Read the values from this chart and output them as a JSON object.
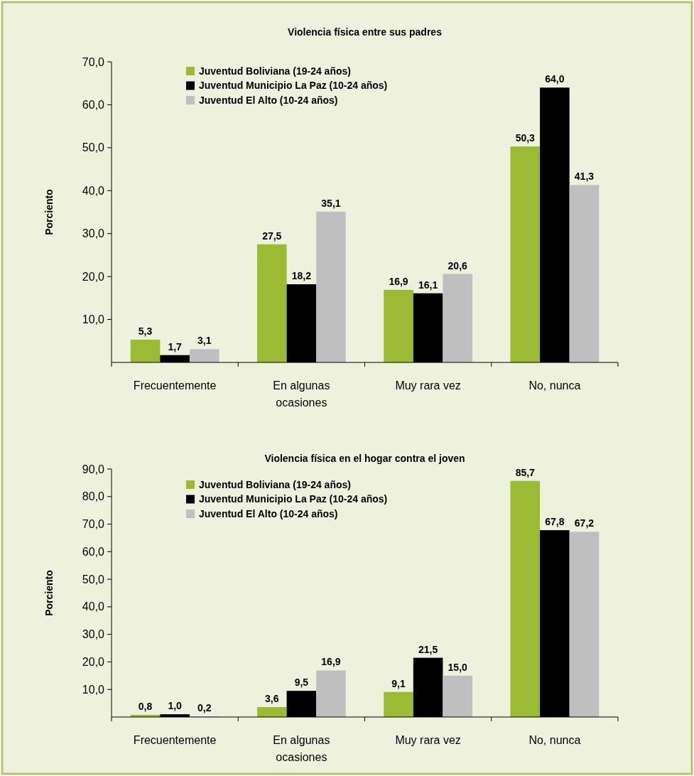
{
  "chart_data": [
    {
      "type": "bar",
      "title": "Violencia física entre sus padres",
      "ylabel": "Porciento",
      "categories": [
        "Frecuentemente",
        "En algunas ocasiones",
        "Muy rara vez",
        "No, nunca"
      ],
      "series": [
        {
          "name": "Juventud Boliviana (19-24 años)",
          "color": "#9bbb34",
          "values": [
            5.3,
            27.5,
            16.9,
            50.3
          ],
          "value_labels": [
            "5,3",
            "27,5",
            "16,9",
            "50,3"
          ]
        },
        {
          "name": "Juventud Municipio La Paz (10-24 años)",
          "color": "#000000",
          "values": [
            1.7,
            18.2,
            16.1,
            64.0
          ],
          "value_labels": [
            "1,7",
            "18,2",
            "16,1",
            "64,0"
          ]
        },
        {
          "name": "Juventud El Alto (10-24 años)",
          "color": "#bfbfbf",
          "values": [
            3.1,
            35.1,
            20.6,
            41.3
          ],
          "value_labels": [
            "3,1",
            "35,1",
            "20,6",
            "41,3"
          ]
        }
      ],
      "ylim": [
        0,
        70
      ],
      "yticks": [
        {
          "value": 10,
          "label": "10,0"
        },
        {
          "value": 20,
          "label": "20,0"
        },
        {
          "value": 30,
          "label": "30,0"
        },
        {
          "value": 40,
          "label": "40,0"
        },
        {
          "value": 50,
          "label": "50,0"
        },
        {
          "value": 60,
          "label": "60,0"
        },
        {
          "value": 70,
          "label": "70,0"
        }
      ],
      "grid": false,
      "legend": "top left"
    },
    {
      "type": "bar",
      "title": "Violencia física en el hogar contra el joven",
      "ylabel": "Porciento",
      "categories": [
        "Frecuentemente",
        "En algunas ocasiones",
        "Muy rara vez",
        "No, nunca"
      ],
      "series": [
        {
          "name": "Juventud Boliviana (19-24 años)",
          "color": "#9bbb34",
          "values": [
            0.8,
            3.6,
            9.1,
            85.7
          ],
          "value_labels": [
            "0,8",
            "3,6",
            "9,1",
            "85,7"
          ]
        },
        {
          "name": "Juventud Municipio La Paz (10-24 años)",
          "color": "#000000",
          "values": [
            1.0,
            9.5,
            21.5,
            67.8
          ],
          "value_labels": [
            "1,0",
            "9,5",
            "21,5",
            "67,8"
          ]
        },
        {
          "name": "Juventud El Alto (10-24 años)",
          "color": "#bfbfbf",
          "values": [
            0.2,
            16.9,
            15.0,
            67.2
          ],
          "value_labels": [
            "0,2",
            "16,9",
            "15,0",
            "67,2"
          ]
        }
      ],
      "ylim": [
        0,
        90
      ],
      "yticks": [
        {
          "value": 10,
          "label": "10,0"
        },
        {
          "value": 20,
          "label": "20,0"
        },
        {
          "value": 30,
          "label": "30,0"
        },
        {
          "value": 40,
          "label": "40,0"
        },
        {
          "value": 50,
          "label": "50,0"
        },
        {
          "value": 60,
          "label": "60,0"
        },
        {
          "value": 70,
          "label": "70,0"
        },
        {
          "value": 80,
          "label": "80,0"
        },
        {
          "value": 90,
          "label": "90,0"
        }
      ],
      "grid": false,
      "legend": "top left"
    }
  ]
}
